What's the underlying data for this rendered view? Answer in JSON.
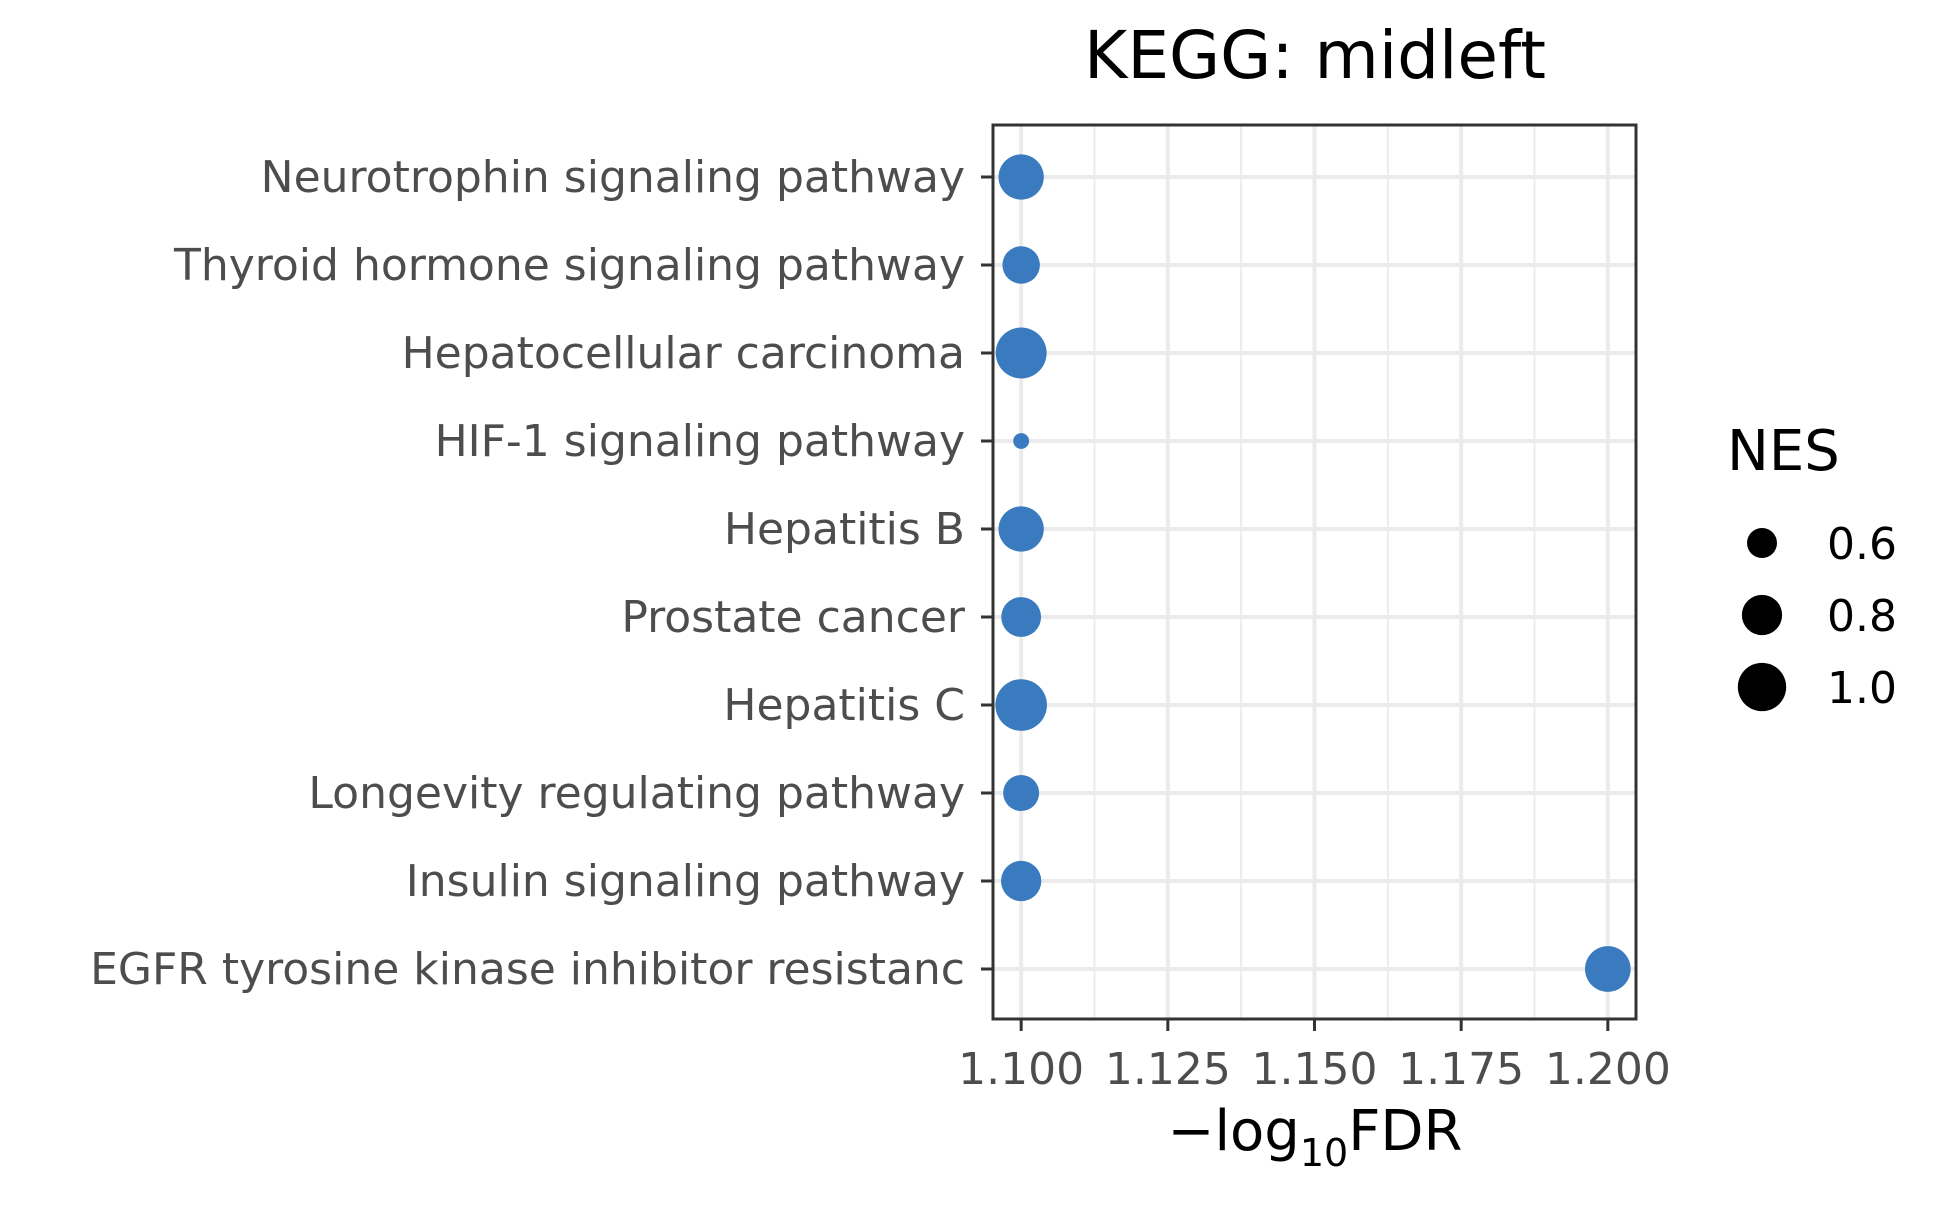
{
  "chart_data": {
    "type": "scatter",
    "title": "KEGG: midleft",
    "xlabel": {
      "prefix": "−log",
      "subscript": "10",
      "suffix": "FDR"
    },
    "ylabel": "",
    "xlim": [
      1.0952,
      1.2048
    ],
    "xticks": [
      "1.100",
      "1.125",
      "1.150",
      "1.175",
      "1.200"
    ],
    "xtick_values": [
      1.1,
      1.125,
      1.15,
      1.175,
      1.2
    ],
    "grid": true,
    "point_color": "#3a7bbf",
    "categories": [
      "Neurotrophin signaling pathway",
      "Thyroid hormone signaling pathway",
      "Hepatocellular carcinoma",
      "HIF-1 signaling pathway",
      "Hepatitis B",
      "Prostate cancer",
      "Hepatitis C",
      "Longevity regulating pathway",
      "Insulin signaling pathway",
      "EGFR tyrosine kinase inhibitor resistanc"
    ],
    "points": [
      {
        "y": "Neurotrophin signaling pathway",
        "x": 1.1,
        "nes": 0.92
      },
      {
        "y": "Thyroid hormone signaling pathway",
        "x": 1.1,
        "nes": 0.74
      },
      {
        "y": "Hepatocellular carcinoma",
        "x": 1.1,
        "nes": 1.07
      },
      {
        "y": "HIF-1 signaling pathway",
        "x": 1.1,
        "nes": 0.42
      },
      {
        "y": "Hepatitis B",
        "x": 1.1,
        "nes": 0.92
      },
      {
        "y": "Prostate cancer",
        "x": 1.1,
        "nes": 0.79
      },
      {
        "y": "Hepatitis C",
        "x": 1.1,
        "nes": 1.09
      },
      {
        "y": "Longevity regulating pathway",
        "x": 1.1,
        "nes": 0.71
      },
      {
        "y": "Insulin signaling pathway",
        "x": 1.1,
        "nes": 0.8
      },
      {
        "y": "EGFR tyrosine kinase inhibitor resistanc",
        "x": 1.2,
        "nes": 0.93
      }
    ],
    "legend": {
      "title": "NES",
      "position": "right",
      "entries": [
        {
          "label": "0.6",
          "value": 0.6
        },
        {
          "label": "0.8",
          "value": 0.8
        },
        {
          "label": "1.0",
          "value": 1.0
        }
      ]
    }
  }
}
